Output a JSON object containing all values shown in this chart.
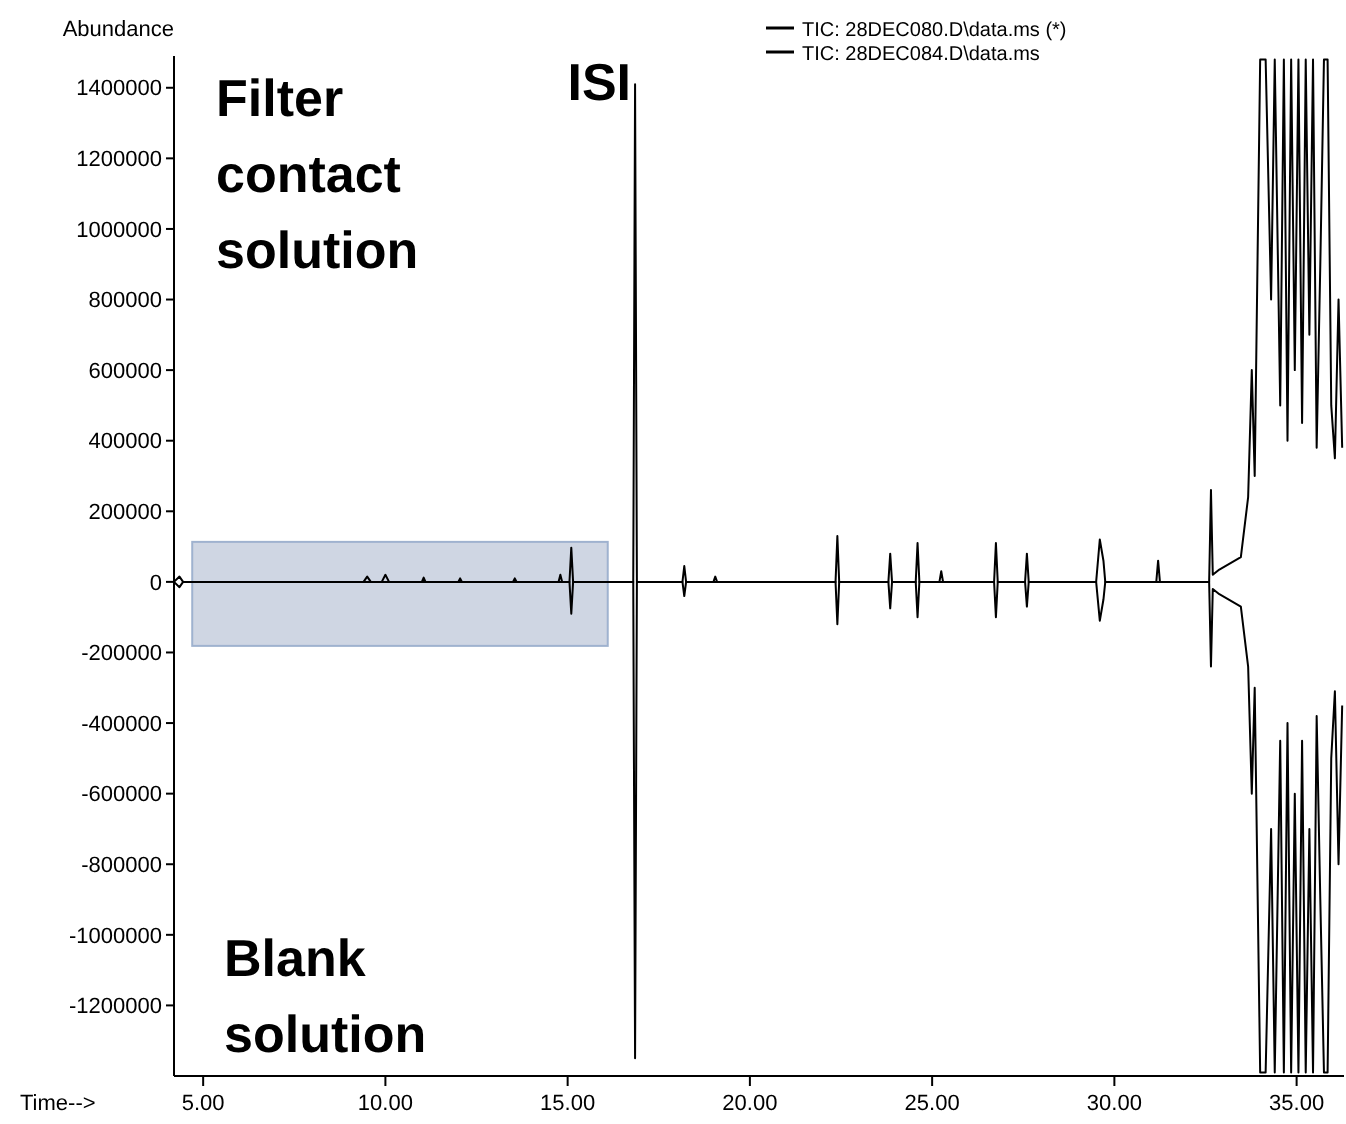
{
  "chart_data": {
    "type": "line",
    "xlabel": "Time-->",
    "ylabel": "Abundance",
    "xlim": [
      4.2,
      36.3
    ],
    "xticks": [
      {
        "value": 5,
        "label": "5.00"
      },
      {
        "value": 10,
        "label": "10.00"
      },
      {
        "value": 15,
        "label": "15.00"
      },
      {
        "value": 20,
        "label": "20.00"
      },
      {
        "value": 25,
        "label": "25.00"
      },
      {
        "value": 30,
        "label": "30.00"
      },
      {
        "value": 35,
        "label": "35.00"
      }
    ],
    "ylim": [
      -1400000,
      1490000
    ],
    "yticks": [
      -1200000,
      -1000000,
      -800000,
      -600000,
      -400000,
      -200000,
      0,
      200000,
      400000,
      600000,
      800000,
      1000000,
      1200000,
      1400000
    ],
    "grid": false,
    "legend": "top right",
    "line_style": "solid",
    "marker": "none",
    "annotations": [
      "Filter contact solution",
      "Blank solution",
      {
        "text": "ISI",
        "x": 16.85,
        "y": 1410000
      }
    ],
    "bands": [
      {
        "axis": "x",
        "from": 4.7,
        "to": 16.1,
        "color": "#c3ccdc"
      }
    ],
    "series": [
      {
        "name": "TIC: 28DEC080.D\\data.ms (*)",
        "color": "#000000",
        "x": [
          4.2,
          4.35,
          4.45,
          4.6,
          9.4,
          9.5,
          9.6,
          9.9,
          10.0,
          10.1,
          11.0,
          11.05,
          11.1,
          12.0,
          12.05,
          12.1,
          13.5,
          13.55,
          13.6,
          14.75,
          14.8,
          14.85,
          15.05,
          15.1,
          15.15,
          16.8,
          16.85,
          16.9,
          18.15,
          18.2,
          18.25,
          19.0,
          19.05,
          19.1,
          22.35,
          22.4,
          22.45,
          23.8,
          23.85,
          23.9,
          24.55,
          24.6,
          24.65,
          25.2,
          25.25,
          25.3,
          26.7,
          26.75,
          26.8,
          27.55,
          27.6,
          27.65,
          29.5,
          29.6,
          29.7,
          29.75,
          31.15,
          31.2,
          31.25,
          32.6,
          32.65,
          32.7,
          32.88,
          33.47,
          33.67,
          33.77,
          33.85,
          34.0,
          34.15,
          34.3,
          34.4,
          34.55,
          34.65,
          34.75,
          34.85,
          34.95,
          35.05,
          35.15,
          35.25,
          35.35,
          35.45,
          35.55,
          35.65,
          35.75,
          35.85,
          35.95,
          36.05,
          36.15,
          36.25
        ],
        "values": [
          0,
          15000,
          0,
          0,
          0,
          15000,
          0,
          0,
          20000,
          0,
          0,
          12000,
          0,
          0,
          10000,
          0,
          0,
          10000,
          0,
          0,
          20000,
          0,
          0,
          97000,
          0,
          0,
          1410000,
          0,
          0,
          45000,
          0,
          0,
          15000,
          0,
          0,
          130000,
          0,
          0,
          80000,
          0,
          0,
          110000,
          0,
          0,
          30000,
          0,
          0,
          110000,
          0,
          0,
          80000,
          0,
          0,
          120000,
          60000,
          0,
          0,
          60000,
          0,
          0,
          260000,
          20000,
          35000,
          70000,
          240000,
          600000,
          300000,
          1480000,
          1480000,
          800000,
          1480000,
          500000,
          1480000,
          400000,
          1480000,
          600000,
          1480000,
          450000,
          1480000,
          700000,
          1480000,
          380000,
          900000,
          1480000,
          1480000,
          500000,
          350000,
          800000,
          380000
        ]
      },
      {
        "name": "TIC: 28DEC084.D\\data.ms",
        "color": "#000000",
        "x": [
          4.2,
          4.35,
          4.45,
          4.6,
          15.05,
          15.1,
          15.15,
          16.8,
          16.85,
          16.9,
          18.15,
          18.2,
          18.25,
          22.35,
          22.4,
          22.45,
          23.8,
          23.85,
          23.9,
          24.55,
          24.6,
          24.65,
          26.7,
          26.75,
          26.8,
          27.55,
          27.6,
          27.65,
          29.5,
          29.6,
          29.7,
          29.75,
          32.6,
          32.65,
          32.7,
          32.88,
          33.47,
          33.67,
          33.77,
          33.85,
          34.0,
          34.15,
          34.3,
          34.4,
          34.55,
          34.65,
          34.75,
          34.85,
          34.95,
          35.05,
          35.15,
          35.25,
          35.35,
          35.45,
          35.55,
          35.65,
          35.75,
          35.85,
          35.95,
          36.05,
          36.15,
          36.25
        ],
        "values": [
          0,
          -15000,
          0,
          0,
          0,
          -90000,
          0,
          0,
          -1350000,
          0,
          0,
          -40000,
          0,
          0,
          -120000,
          0,
          0,
          -75000,
          0,
          0,
          -100000,
          0,
          0,
          -100000,
          0,
          0,
          -70000,
          0,
          0,
          -110000,
          -50000,
          0,
          0,
          -240000,
          -20000,
          -35000,
          -70000,
          -240000,
          -600000,
          -300000,
          -1390000,
          -1390000,
          -700000,
          -1390000,
          -450000,
          -1390000,
          -400000,
          -1390000,
          -600000,
          -1390000,
          -450000,
          -1390000,
          -700000,
          -1390000,
          -380000,
          -900000,
          -1390000,
          -1390000,
          -500000,
          -310000,
          -800000,
          -350000
        ]
      }
    ]
  }
}
